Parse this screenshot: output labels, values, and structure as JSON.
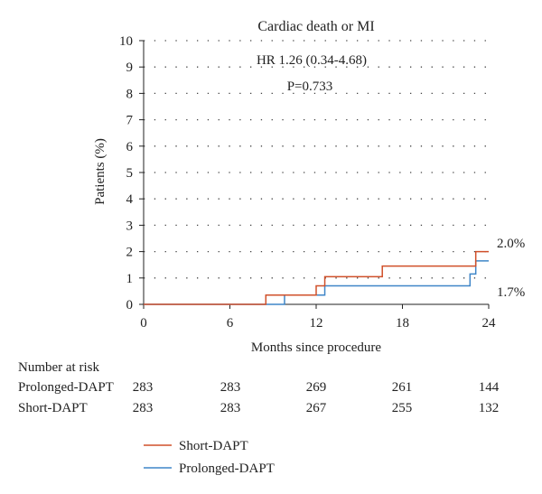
{
  "chart_data": {
    "type": "line",
    "title": "Cardiac death or MI",
    "annotations": [
      "HR 1.26 (0.34-4.68)",
      "P=0.733"
    ],
    "xlabel": "Months since procedure",
    "ylabel": "Patients (%)",
    "xlim": [
      0,
      24
    ],
    "ylim": [
      0,
      10
    ],
    "x_ticks": [
      0,
      6,
      12,
      18,
      24
    ],
    "y_ticks": [
      0,
      1,
      2,
      3,
      4,
      5,
      6,
      7,
      8,
      9,
      10
    ],
    "grid": "dotted horizontal",
    "legend_position": "bottom-left",
    "series": [
      {
        "name": "Short-DAPT",
        "color": "#d0502a",
        "steps": [
          [
            0,
            0
          ],
          [
            8.5,
            0.35
          ],
          [
            12.0,
            0.7
          ],
          [
            12.6,
            1.05
          ],
          [
            16.6,
            1.45
          ],
          [
            23.1,
            2.0
          ],
          [
            24,
            2.0
          ]
        ],
        "end_label": "2.0%"
      },
      {
        "name": "Prolonged-DAPT",
        "color": "#3f86c8",
        "steps": [
          [
            0,
            0
          ],
          [
            9.8,
            0.35
          ],
          [
            12.6,
            0.7
          ],
          [
            22.7,
            1.15
          ],
          [
            23.1,
            1.65
          ],
          [
            24,
            1.65
          ]
        ],
        "end_label": "1.7%"
      }
    ]
  },
  "risk_table": {
    "header": "Number at risk",
    "rows": [
      {
        "label": "Prolonged-DAPT",
        "values": [
          "283",
          "283",
          "269",
          "261",
          "144"
        ]
      },
      {
        "label": "Short-DAPT",
        "values": [
          "283",
          "283",
          "267",
          "255",
          "132"
        ]
      }
    ]
  }
}
